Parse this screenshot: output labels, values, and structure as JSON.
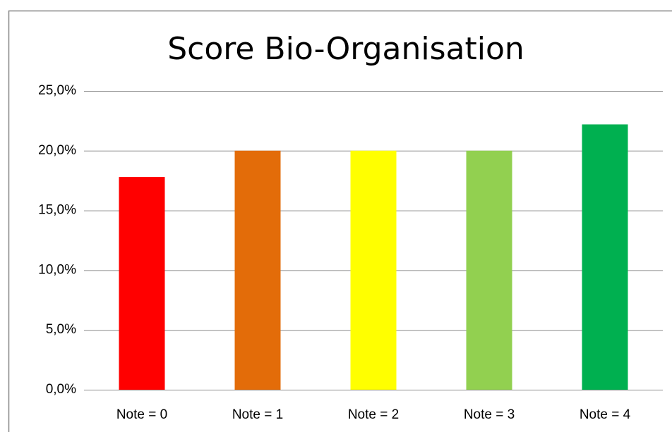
{
  "chart_data": {
    "type": "bar",
    "title": "Score Bio-Organisation",
    "categories": [
      "Note = 0",
      "Note = 1",
      "Note = 2",
      "Note = 3",
      "Note = 4"
    ],
    "values": [
      17.8,
      20.0,
      20.0,
      20.0,
      22.2
    ],
    "colors": [
      "#ff0000",
      "#e36c09",
      "#ffff00",
      "#92d050",
      "#00b050"
    ],
    "ylim": [
      0,
      25
    ],
    "yticks": [
      {
        "value": 0,
        "label": "0,0%"
      },
      {
        "value": 5,
        "label": "5,0%"
      },
      {
        "value": 10,
        "label": "10,0%"
      },
      {
        "value": 15,
        "label": "15,0%"
      },
      {
        "value": 20,
        "label": "20,0%"
      },
      {
        "value": 25,
        "label": "25,0%"
      }
    ],
    "grid": true
  }
}
